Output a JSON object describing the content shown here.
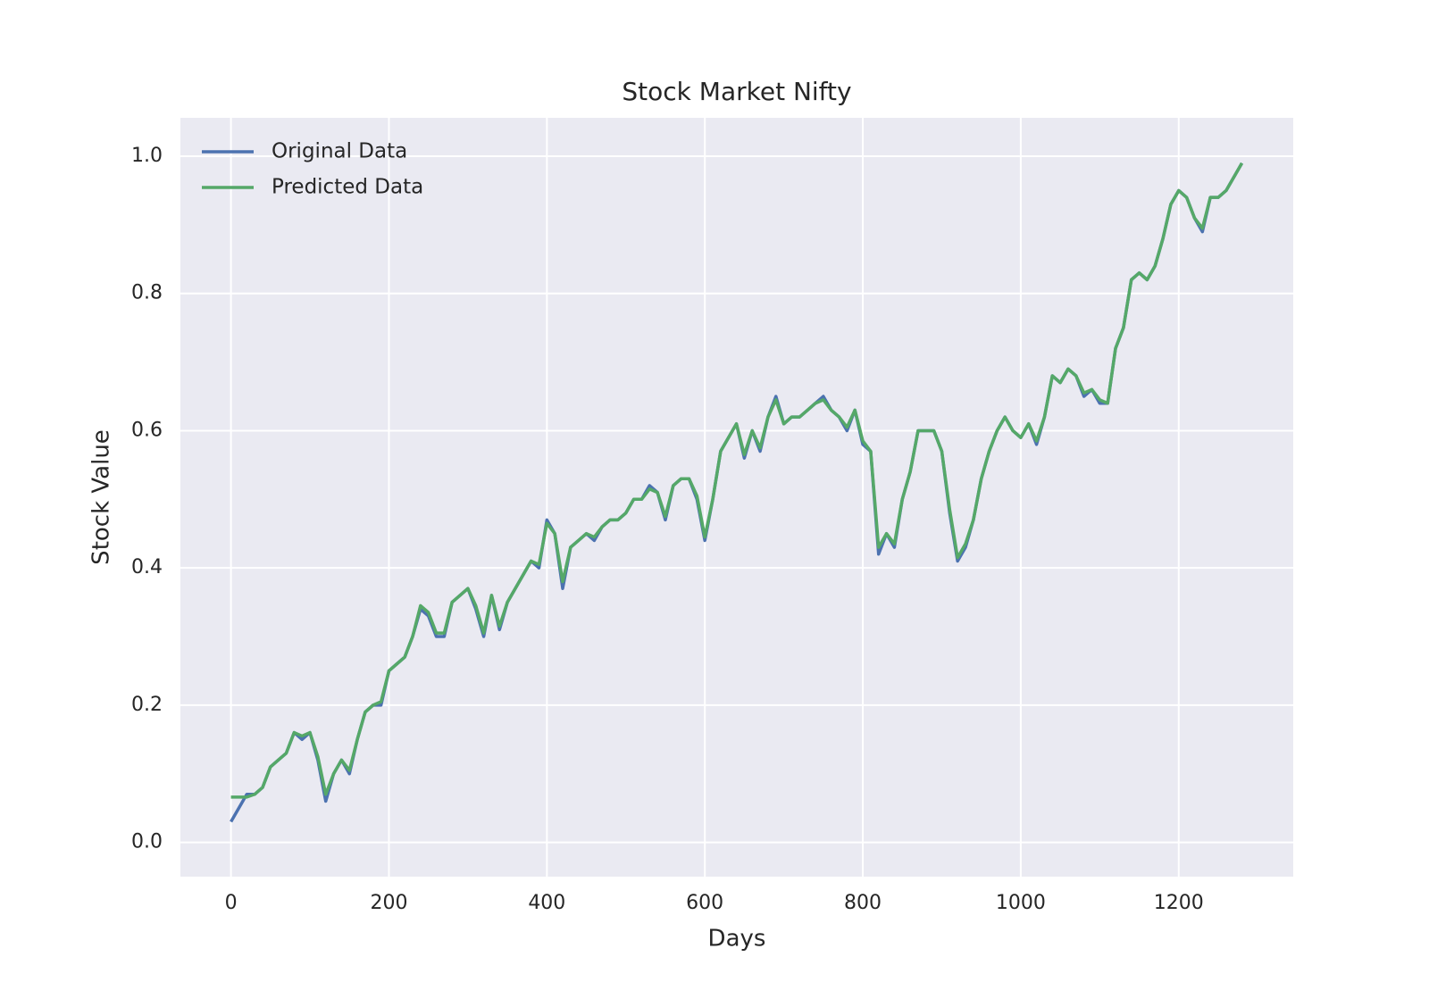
{
  "chart_data": {
    "type": "line",
    "title": "Stock Market Nifty",
    "xlabel": "Days",
    "ylabel": "Stock Value",
    "x": [
      0,
      10,
      20,
      30,
      40,
      50,
      60,
      70,
      80,
      90,
      100,
      110,
      120,
      130,
      140,
      150,
      160,
      170,
      180,
      190,
      200,
      210,
      220,
      230,
      240,
      250,
      260,
      270,
      280,
      290,
      300,
      310,
      320,
      330,
      340,
      350,
      360,
      370,
      380,
      390,
      400,
      410,
      420,
      430,
      440,
      450,
      460,
      470,
      480,
      490,
      500,
      510,
      520,
      530,
      540,
      550,
      560,
      570,
      580,
      590,
      600,
      610,
      620,
      630,
      640,
      650,
      660,
      670,
      680,
      690,
      700,
      710,
      720,
      730,
      740,
      750,
      760,
      770,
      780,
      790,
      800,
      810,
      820,
      830,
      840,
      850,
      860,
      870,
      880,
      890,
      900,
      910,
      920,
      930,
      940,
      950,
      960,
      970,
      980,
      990,
      1000,
      1010,
      1020,
      1030,
      1040,
      1050,
      1060,
      1070,
      1080,
      1090,
      1100,
      1110,
      1120,
      1130,
      1140,
      1150,
      1160,
      1170,
      1180,
      1190,
      1200,
      1210,
      1220,
      1230,
      1240,
      1250,
      1260,
      1270,
      1280
    ],
    "series": [
      {
        "name": "Original Data",
        "color": "#4c72b0",
        "values": [
          0.03,
          0.05,
          0.07,
          0.07,
          0.08,
          0.11,
          0.12,
          0.13,
          0.16,
          0.15,
          0.16,
          0.12,
          0.06,
          0.1,
          0.12,
          0.1,
          0.15,
          0.19,
          0.2,
          0.2,
          0.25,
          0.26,
          0.27,
          0.3,
          0.34,
          0.33,
          0.3,
          0.3,
          0.35,
          0.36,
          0.37,
          0.34,
          0.3,
          0.36,
          0.31,
          0.35,
          0.37,
          0.39,
          0.41,
          0.4,
          0.47,
          0.45,
          0.37,
          0.43,
          0.44,
          0.45,
          0.44,
          0.46,
          0.47,
          0.47,
          0.48,
          0.5,
          0.5,
          0.52,
          0.51,
          0.47,
          0.52,
          0.53,
          0.53,
          0.5,
          0.44,
          0.5,
          0.57,
          0.59,
          0.61,
          0.56,
          0.6,
          0.57,
          0.62,
          0.65,
          0.61,
          0.62,
          0.62,
          0.63,
          0.64,
          0.65,
          0.63,
          0.62,
          0.6,
          0.63,
          0.58,
          0.57,
          0.42,
          0.45,
          0.43,
          0.5,
          0.54,
          0.6,
          0.6,
          0.6,
          0.57,
          0.48,
          0.41,
          0.43,
          0.47,
          0.53,
          0.57,
          0.6,
          0.62,
          0.6,
          0.59,
          0.61,
          0.58,
          0.62,
          0.68,
          0.67,
          0.69,
          0.68,
          0.65,
          0.66,
          0.64,
          0.64,
          0.72,
          0.75,
          0.82,
          0.83,
          0.82,
          0.84,
          0.88,
          0.93,
          0.95,
          0.94,
          0.91,
          0.89,
          0.94,
          0.94,
          0.95,
          0.97,
          0.99
        ]
      },
      {
        "name": "Predicted Data",
        "color": "#55a868",
        "values": [
          0.066,
          0.066,
          0.066,
          0.07,
          0.08,
          0.11,
          0.12,
          0.13,
          0.16,
          0.155,
          0.16,
          0.125,
          0.07,
          0.1,
          0.12,
          0.105,
          0.15,
          0.19,
          0.2,
          0.205,
          0.25,
          0.26,
          0.27,
          0.3,
          0.345,
          0.335,
          0.305,
          0.305,
          0.35,
          0.36,
          0.37,
          0.345,
          0.305,
          0.36,
          0.315,
          0.35,
          0.37,
          0.39,
          0.41,
          0.405,
          0.465,
          0.45,
          0.38,
          0.43,
          0.44,
          0.45,
          0.445,
          0.46,
          0.47,
          0.47,
          0.48,
          0.5,
          0.5,
          0.515,
          0.51,
          0.475,
          0.52,
          0.53,
          0.53,
          0.505,
          0.445,
          0.5,
          0.57,
          0.59,
          0.61,
          0.565,
          0.6,
          0.575,
          0.62,
          0.645,
          0.61,
          0.62,
          0.62,
          0.63,
          0.64,
          0.645,
          0.63,
          0.62,
          0.605,
          0.63,
          0.585,
          0.57,
          0.43,
          0.45,
          0.435,
          0.5,
          0.54,
          0.6,
          0.6,
          0.6,
          0.57,
          0.485,
          0.415,
          0.435,
          0.47,
          0.53,
          0.57,
          0.6,
          0.62,
          0.6,
          0.59,
          0.61,
          0.585,
          0.62,
          0.68,
          0.67,
          0.69,
          0.68,
          0.655,
          0.66,
          0.645,
          0.64,
          0.72,
          0.75,
          0.82,
          0.83,
          0.82,
          0.84,
          0.88,
          0.93,
          0.95,
          0.94,
          0.91,
          0.895,
          0.94,
          0.94,
          0.95,
          0.97,
          0.99
        ]
      }
    ],
    "xlim": [
      -64,
      1345
    ],
    "ylim": [
      -0.05,
      1.056
    ],
    "xticks": [
      0,
      200,
      400,
      600,
      800,
      1000,
      1200
    ],
    "yticks": [
      {
        "value": 0,
        "label": "0.0"
      },
      0.2,
      0.4,
      0.6,
      0.8,
      {
        "value": 1,
        "label": "1.0"
      }
    ],
    "grid": true,
    "legend": "upper left"
  }
}
